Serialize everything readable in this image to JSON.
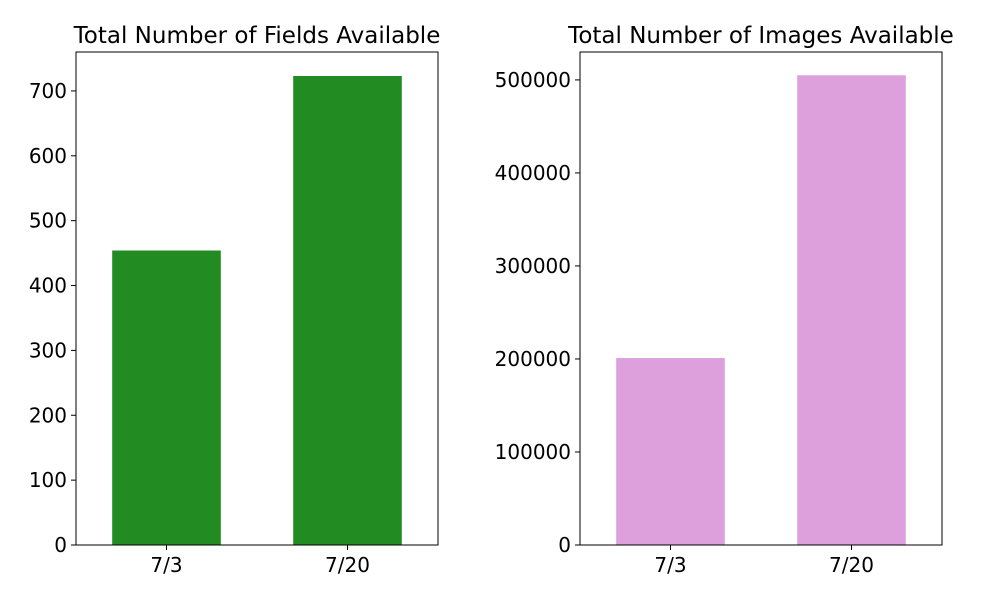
{
  "chart_data": [
    {
      "type": "bar",
      "title": "Total Number of Fields Available",
      "xlabel": "",
      "ylabel": "",
      "categories": [
        "7/3",
        "7/20"
      ],
      "values": [
        454,
        723
      ],
      "ylim": [
        0,
        760
      ],
      "yticks": [
        0,
        100,
        200,
        300,
        400,
        500,
        600,
        700
      ],
      "ytick_labels": [
        "0",
        "100",
        "200",
        "300",
        "400",
        "500",
        "600",
        "700"
      ],
      "color": "#228B22",
      "grid": false,
      "legend": "none"
    },
    {
      "type": "bar",
      "title": "Total Number of Images Available",
      "xlabel": "",
      "ylabel": "",
      "categories": [
        "7/3",
        "7/20"
      ],
      "values": [
        201000,
        505000
      ],
      "ylim": [
        0,
        530000
      ],
      "yticks": [
        0,
        100000,
        200000,
        300000,
        400000,
        500000
      ],
      "ytick_labels": [
        "0",
        "100000",
        "200000",
        "300000",
        "400000",
        "500000"
      ],
      "color": "#DDA0DD",
      "grid": false,
      "legend": "none"
    }
  ]
}
